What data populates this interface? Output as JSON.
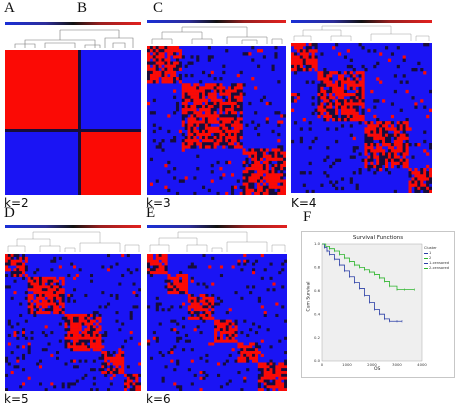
{
  "panels": {
    "A": "A",
    "B": "B",
    "C": "C",
    "D": "D",
    "E": "E",
    "F": "F"
  },
  "k_labels": {
    "k2": "k=2",
    "k3": "k=3",
    "k4": "K=4",
    "k5": "k=5",
    "k6": "k=6"
  },
  "colors": {
    "red": "#fb0a05",
    "blue": "#1a14f4",
    "dark": "#170d3a",
    "green": "#2fb52f",
    "navy": "#2a3ea6"
  },
  "heatmaps": [
    {
      "name": "k2",
      "clusters": 2
    },
    {
      "name": "k3",
      "clusters": 3
    },
    {
      "name": "k4",
      "clusters": 4
    },
    {
      "name": "k5",
      "clusters": 5
    },
    {
      "name": "k6",
      "clusters": 6
    }
  ],
  "survival": {
    "title": "Survival Functions",
    "ylabel": "Cum Survival",
    "xlabel": "OS",
    "legend_title": "Cluster",
    "legend_items": [
      "1",
      "2",
      "1-censored",
      "2-censored"
    ]
  },
  "chart_data": {
    "type": "line",
    "title": "Survival Functions",
    "xlabel": "OS",
    "ylabel": "Cum Survival",
    "xlim": [
      0,
      4000
    ],
    "ylim": [
      0,
      1.0
    ],
    "x_ticks": [
      0,
      1000,
      2000,
      3000,
      4000
    ],
    "y_ticks": [
      0.0,
      0.2,
      0.4,
      0.6,
      0.8,
      1.0
    ],
    "grid": false,
    "legend": "right",
    "series": [
      {
        "name": "1",
        "color": "#2a3ea6",
        "x": [
          0,
          100,
          200,
          300,
          500,
          700,
          900,
          1100,
          1300,
          1500,
          1700,
          1900,
          2100,
          2300,
          2500,
          2700,
          3000,
          3200
        ],
        "y": [
          1.0,
          0.97,
          0.94,
          0.91,
          0.87,
          0.82,
          0.77,
          0.72,
          0.67,
          0.62,
          0.56,
          0.5,
          0.44,
          0.4,
          0.36,
          0.34,
          0.34,
          0.34
        ]
      },
      {
        "name": "2",
        "color": "#2fb52f",
        "x": [
          0,
          150,
          300,
          500,
          700,
          900,
          1100,
          1300,
          1500,
          1700,
          1900,
          2100,
          2300,
          2500,
          2700,
          3000,
          3300,
          3700
        ],
        "y": [
          1.0,
          0.98,
          0.96,
          0.94,
          0.91,
          0.88,
          0.85,
          0.82,
          0.8,
          0.78,
          0.76,
          0.74,
          0.71,
          0.68,
          0.64,
          0.61,
          0.61,
          0.61
        ]
      }
    ]
  }
}
